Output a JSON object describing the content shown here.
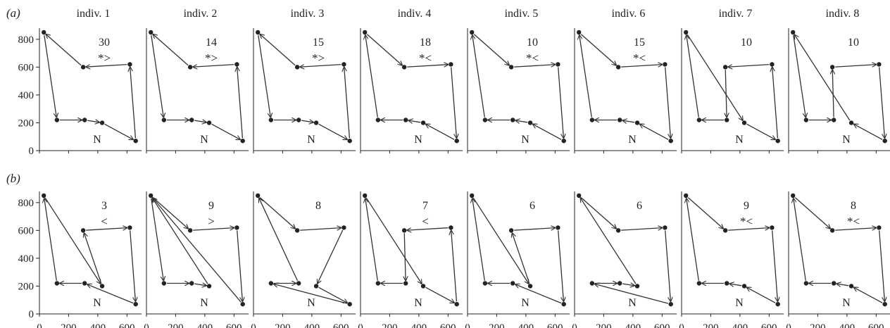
{
  "chart_data": {
    "type": "scatter",
    "xlim": [
      0,
      700
    ],
    "ylim": [
      0,
      880
    ],
    "x_ticks": [
      0,
      200,
      400,
      600
    ],
    "y_ticks": [
      0,
      200,
      400,
      600,
      800
    ],
    "locations": [
      {
        "x": 30,
        "y": 850
      },
      {
        "x": 300,
        "y": 600
      },
      {
        "x": 620,
        "y": 620
      },
      {
        "x": 660,
        "y": 70
      },
      {
        "x": 430,
        "y": 200
      },
      {
        "x": 310,
        "y": 220
      },
      {
        "x": 120,
        "y": 220
      }
    ],
    "start_label": "N",
    "rows": [
      {
        "label": "(a)",
        "panels": [
          {
            "title": "indiv. 1",
            "count": "30",
            "mark": "*>",
            "route": [
              0,
              6,
              5,
              4,
              3,
              2,
              1,
              0
            ]
          },
          {
            "title": "indiv. 2",
            "count": "14",
            "mark": "*>",
            "route": [
              0,
              6,
              5,
              4,
              3,
              2,
              1,
              0
            ]
          },
          {
            "title": "indiv. 3",
            "count": "15",
            "mark": "*>",
            "route": [
              0,
              6,
              5,
              4,
              3,
              2,
              1,
              0
            ]
          },
          {
            "title": "indiv. 4",
            "count": "18",
            "mark": "*<",
            "route": [
              0,
              1,
              2,
              3,
              4,
              5,
              6,
              0
            ]
          },
          {
            "title": "indiv. 5",
            "count": "10",
            "mark": "*<",
            "route": [
              0,
              1,
              2,
              3,
              4,
              5,
              6,
              0
            ]
          },
          {
            "title": "indiv. 6",
            "count": "15",
            "mark": "*<",
            "route": [
              0,
              1,
              2,
              3,
              4,
              5,
              6,
              0
            ]
          },
          {
            "title": "indiv. 7",
            "count": "10",
            "mark": "",
            "route": [
              0,
              4,
              3,
              2,
              1,
              5,
              6,
              0
            ]
          },
          {
            "title": "indiv. 8",
            "count": "10",
            "mark": "",
            "route": [
              0,
              6,
              5,
              1,
              2,
              3,
              4,
              0
            ]
          }
        ]
      },
      {
        "label": "(b)",
        "panels": [
          {
            "title": "",
            "count": "3",
            "mark": "<",
            "route": [
              0,
              4,
              1,
              2,
              3,
              5,
              6,
              0
            ]
          },
          {
            "title": "",
            "count": "9",
            "mark": ">",
            "route": [
              0,
              6,
              5,
              4,
              0,
              1,
              2,
              3,
              0
            ]
          },
          {
            "title": "",
            "count": "8",
            "mark": "",
            "route": [
              0,
              1,
              2,
              4,
              3,
              6,
              5,
              0
            ]
          },
          {
            "title": "",
            "count": "7",
            "mark": "<",
            "route": [
              0,
              4,
              3,
              2,
              1,
              5,
              6,
              0
            ]
          },
          {
            "title": "",
            "count": "6",
            "mark": "",
            "route": [
              0,
              4,
              1,
              2,
              3,
              5,
              6,
              0
            ]
          },
          {
            "title": "",
            "count": "6",
            "mark": "",
            "route": [
              0,
              1,
              2,
              3,
              6,
              5,
              4,
              0
            ]
          },
          {
            "title": "",
            "count": "9",
            "mark": "*<",
            "route": [
              0,
              1,
              2,
              3,
              4,
              5,
              6,
              0
            ]
          },
          {
            "title": "",
            "count": "8",
            "mark": "*<",
            "route": [
              0,
              1,
              2,
              3,
              4,
              5,
              6,
              0
            ]
          }
        ]
      }
    ]
  }
}
